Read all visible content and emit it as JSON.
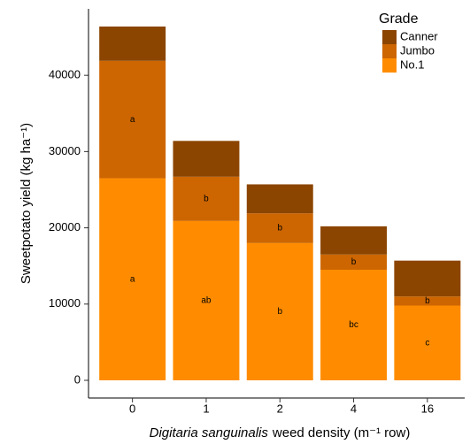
{
  "chart_data": {
    "type": "stacked_bar",
    "categories": [
      "0",
      "1",
      "2",
      "4",
      "16"
    ],
    "series": [
      {
        "name": "No.1",
        "color": "#ff8c00",
        "values": [
          26500,
          20900,
          18000,
          14500,
          9800
        ],
        "letters": [
          "a",
          "ab",
          "b",
          "bc",
          "c"
        ]
      },
      {
        "name": "Jumbo",
        "color": "#cd6600",
        "values": [
          15400,
          5800,
          3900,
          2000,
          1200
        ],
        "letters": [
          "a",
          "b",
          "b",
          "b",
          "b"
        ]
      },
      {
        "name": "Canner",
        "color": "#8b4500",
        "values": [
          4500,
          4700,
          3800,
          3700,
          4700
        ]
      }
    ],
    "ylim": [
      -2320,
      48720
    ],
    "yticks": [
      0,
      10000,
      20000,
      30000,
      40000
    ],
    "ylabel": "Sweetpotato yield (kg ha⁻¹)",
    "xlabel_italic": "Digitaria sanguinalis",
    "xlabel_rest": "weed density (m⁻¹ row)",
    "legend_title": "Grade",
    "legend_position": "top-right"
  }
}
